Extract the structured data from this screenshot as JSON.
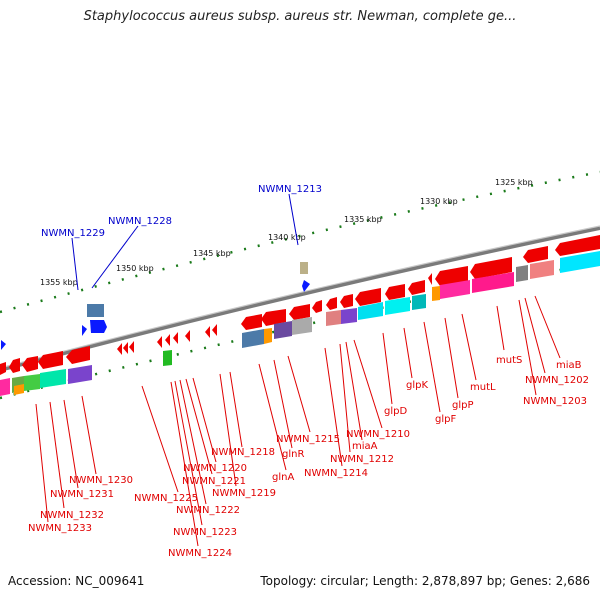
{
  "title": "Staphylococcus aureus subsp. aureus str. Newman, complete ge...",
  "accession": "Accession: NC_009641",
  "summary": "Topology: circular; Length: 2,878,897 bp; Genes: 2,686",
  "colors": {
    "forward_gene": "#0a1aff",
    "reverse_gene": "#ee0000",
    "backbone": "#888888",
    "scale_tick": "#1a7a1a",
    "label_red": "#e00000",
    "label_blue": "#0000cc"
  },
  "scale_labels": [
    "1325 kbp",
    "1330 kbp",
    "1335 kbp",
    "1340 kbp",
    "1345 kbp",
    "1350 kbp",
    "1355 kbp"
  ],
  "forward_gene_labels": [
    "NWMN_1213",
    "NWMN_1228",
    "NWMN_1229"
  ],
  "reverse_gene_labels": [
    "miaB",
    "NWMN_1202",
    "NWMN_1203",
    "mutS",
    "mutL",
    "glpP",
    "glpF",
    "glpK",
    "glpD",
    "NWMN_1210",
    "miaA",
    "NWMN_1212",
    "NWMN_1214",
    "NWMN_1215",
    "glnR",
    "glnA",
    "NWMN_1218",
    "NWMN_1219",
    "NWMN_1220",
    "NWMN_1221",
    "NWMN_1222",
    "NWMN_1223",
    "NWMN_1224",
    "NWMN_1225",
    "NWMN_1230",
    "NWMN_1231",
    "NWMN_1232",
    "NWMN_1233"
  ]
}
